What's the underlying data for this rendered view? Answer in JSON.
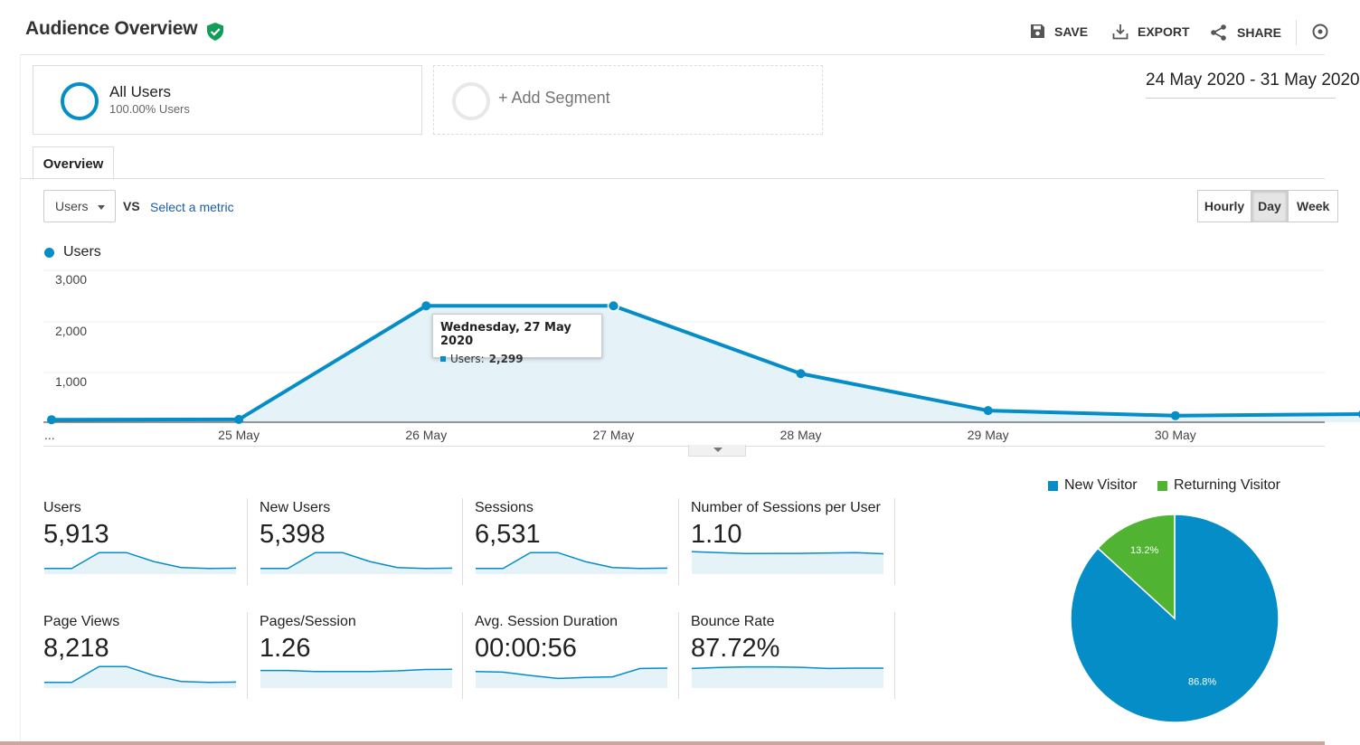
{
  "header": {
    "title": "Audience Overview",
    "save_label": "SAVE",
    "export_label": "EXPORT",
    "share_label": "SHARE"
  },
  "segments": {
    "active_name": "All Users",
    "active_sub": "100.00% Users",
    "add_label": "+ Add Segment"
  },
  "date_range": "24 May 2020 - 31 May 2020",
  "tabs": {
    "overview": "Overview"
  },
  "controls": {
    "metric": "Users",
    "vs": "VS",
    "select_metric": "Select a metric",
    "granularity": [
      "Hourly",
      "Day",
      "Week"
    ],
    "granularity_selected": "Day"
  },
  "chart_data": {
    "type": "area",
    "legend": "Users",
    "y_ticks": [
      "3,000",
      "2,000",
      "1,000"
    ],
    "ylim": [
      0,
      3000
    ],
    "x_labels": [
      "...",
      "25 May",
      "26 May",
      "27 May",
      "28 May",
      "29 May",
      "30 May"
    ],
    "series": [
      {
        "name": "Users",
        "x": [
          "24 May",
          "25 May",
          "26 May",
          "27 May",
          "28 May",
          "29 May",
          "30 May",
          "31 May"
        ],
        "values": [
          50,
          55,
          2299,
          2299,
          960,
          230,
          130,
          160
        ]
      }
    ],
    "color": "#058dc7",
    "tooltip": {
      "date": "Wednesday, 27 May 2020",
      "label": "Users:",
      "value": "2,299"
    }
  },
  "stats": [
    {
      "label": "Users",
      "value": "5,913",
      "spark": [
        0.1,
        0.1,
        0.9,
        0.9,
        0.45,
        0.15,
        0.1,
        0.12
      ]
    },
    {
      "label": "New Users",
      "value": "5,398",
      "spark": [
        0.1,
        0.1,
        0.9,
        0.9,
        0.45,
        0.15,
        0.1,
        0.12
      ]
    },
    {
      "label": "Sessions",
      "value": "6,531",
      "spark": [
        0.1,
        0.1,
        0.9,
        0.9,
        0.45,
        0.15,
        0.1,
        0.12
      ]
    },
    {
      "label": "Number of Sessions per User",
      "value": "1.10",
      "spark": [
        0.95,
        0.9,
        0.85,
        0.86,
        0.86,
        0.88,
        0.9,
        0.84
      ]
    },
    {
      "label": "Page Views",
      "value": "8,218",
      "spark": [
        0.1,
        0.1,
        0.9,
        0.9,
        0.45,
        0.15,
        0.1,
        0.12
      ]
    },
    {
      "label": "Pages/Session",
      "value": "1.26",
      "spark": [
        0.7,
        0.7,
        0.65,
        0.65,
        0.65,
        0.68,
        0.75,
        0.76
      ]
    },
    {
      "label": "Avg. Session Duration",
      "value": "00:00:56",
      "spark": [
        0.65,
        0.62,
        0.45,
        0.3,
        0.35,
        0.38,
        0.8,
        0.82
      ]
    },
    {
      "label": "Bounce Rate",
      "value": "87.72%",
      "spark": [
        0.8,
        0.85,
        0.88,
        0.88,
        0.86,
        0.8,
        0.82,
        0.82
      ]
    }
  ],
  "pie": {
    "legend": [
      {
        "name": "New Visitor",
        "color": "#058dc7"
      },
      {
        "name": "Returning Visitor",
        "color": "#50b432"
      }
    ],
    "values": [
      86.8,
      13.2
    ],
    "labels": [
      "86.8%",
      "13.2%"
    ]
  }
}
